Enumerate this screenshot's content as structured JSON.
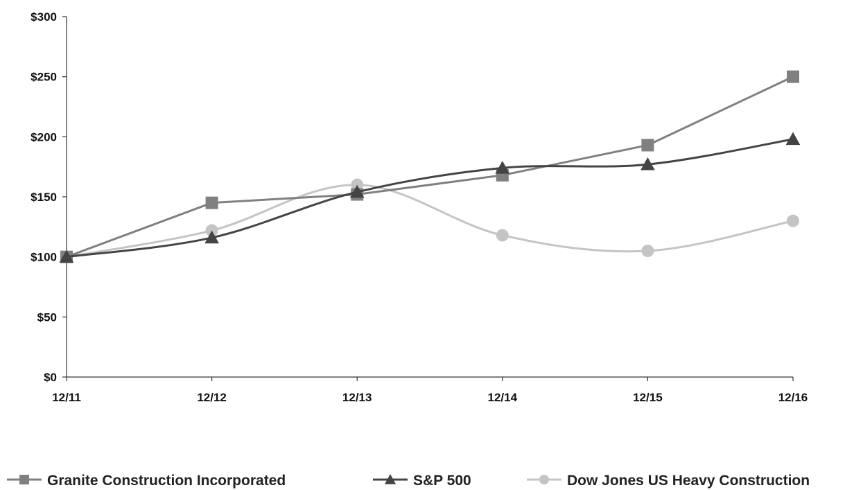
{
  "chart_data": {
    "type": "line",
    "categories": [
      "12/11",
      "12/12",
      "12/13",
      "12/14",
      "12/15",
      "12/16"
    ],
    "ylim": [
      0,
      300
    ],
    "yticks": [
      0,
      50,
      100,
      150,
      200,
      250,
      300
    ],
    "ytick_labels": [
      "$0",
      "$50",
      "$100",
      "$150",
      "$200",
      "$250",
      "$300"
    ],
    "grid": false,
    "legend_position": "bottom",
    "series": [
      {
        "name": "Granite Construction Incorporated",
        "values": [
          100,
          145,
          152,
          168,
          193,
          250
        ],
        "color": "#808080",
        "marker": "square",
        "smooth": false
      },
      {
        "name": "S&P 500",
        "values": [
          100,
          116,
          154,
          174,
          177,
          198
        ],
        "color": "#444444",
        "marker": "triangle",
        "smooth": true
      },
      {
        "name": "Dow Jones US Heavy Construction",
        "values": [
          100,
          122,
          160,
          118,
          105,
          130
        ],
        "color": "#c4c4c4",
        "marker": "circle",
        "smooth": true
      }
    ]
  }
}
